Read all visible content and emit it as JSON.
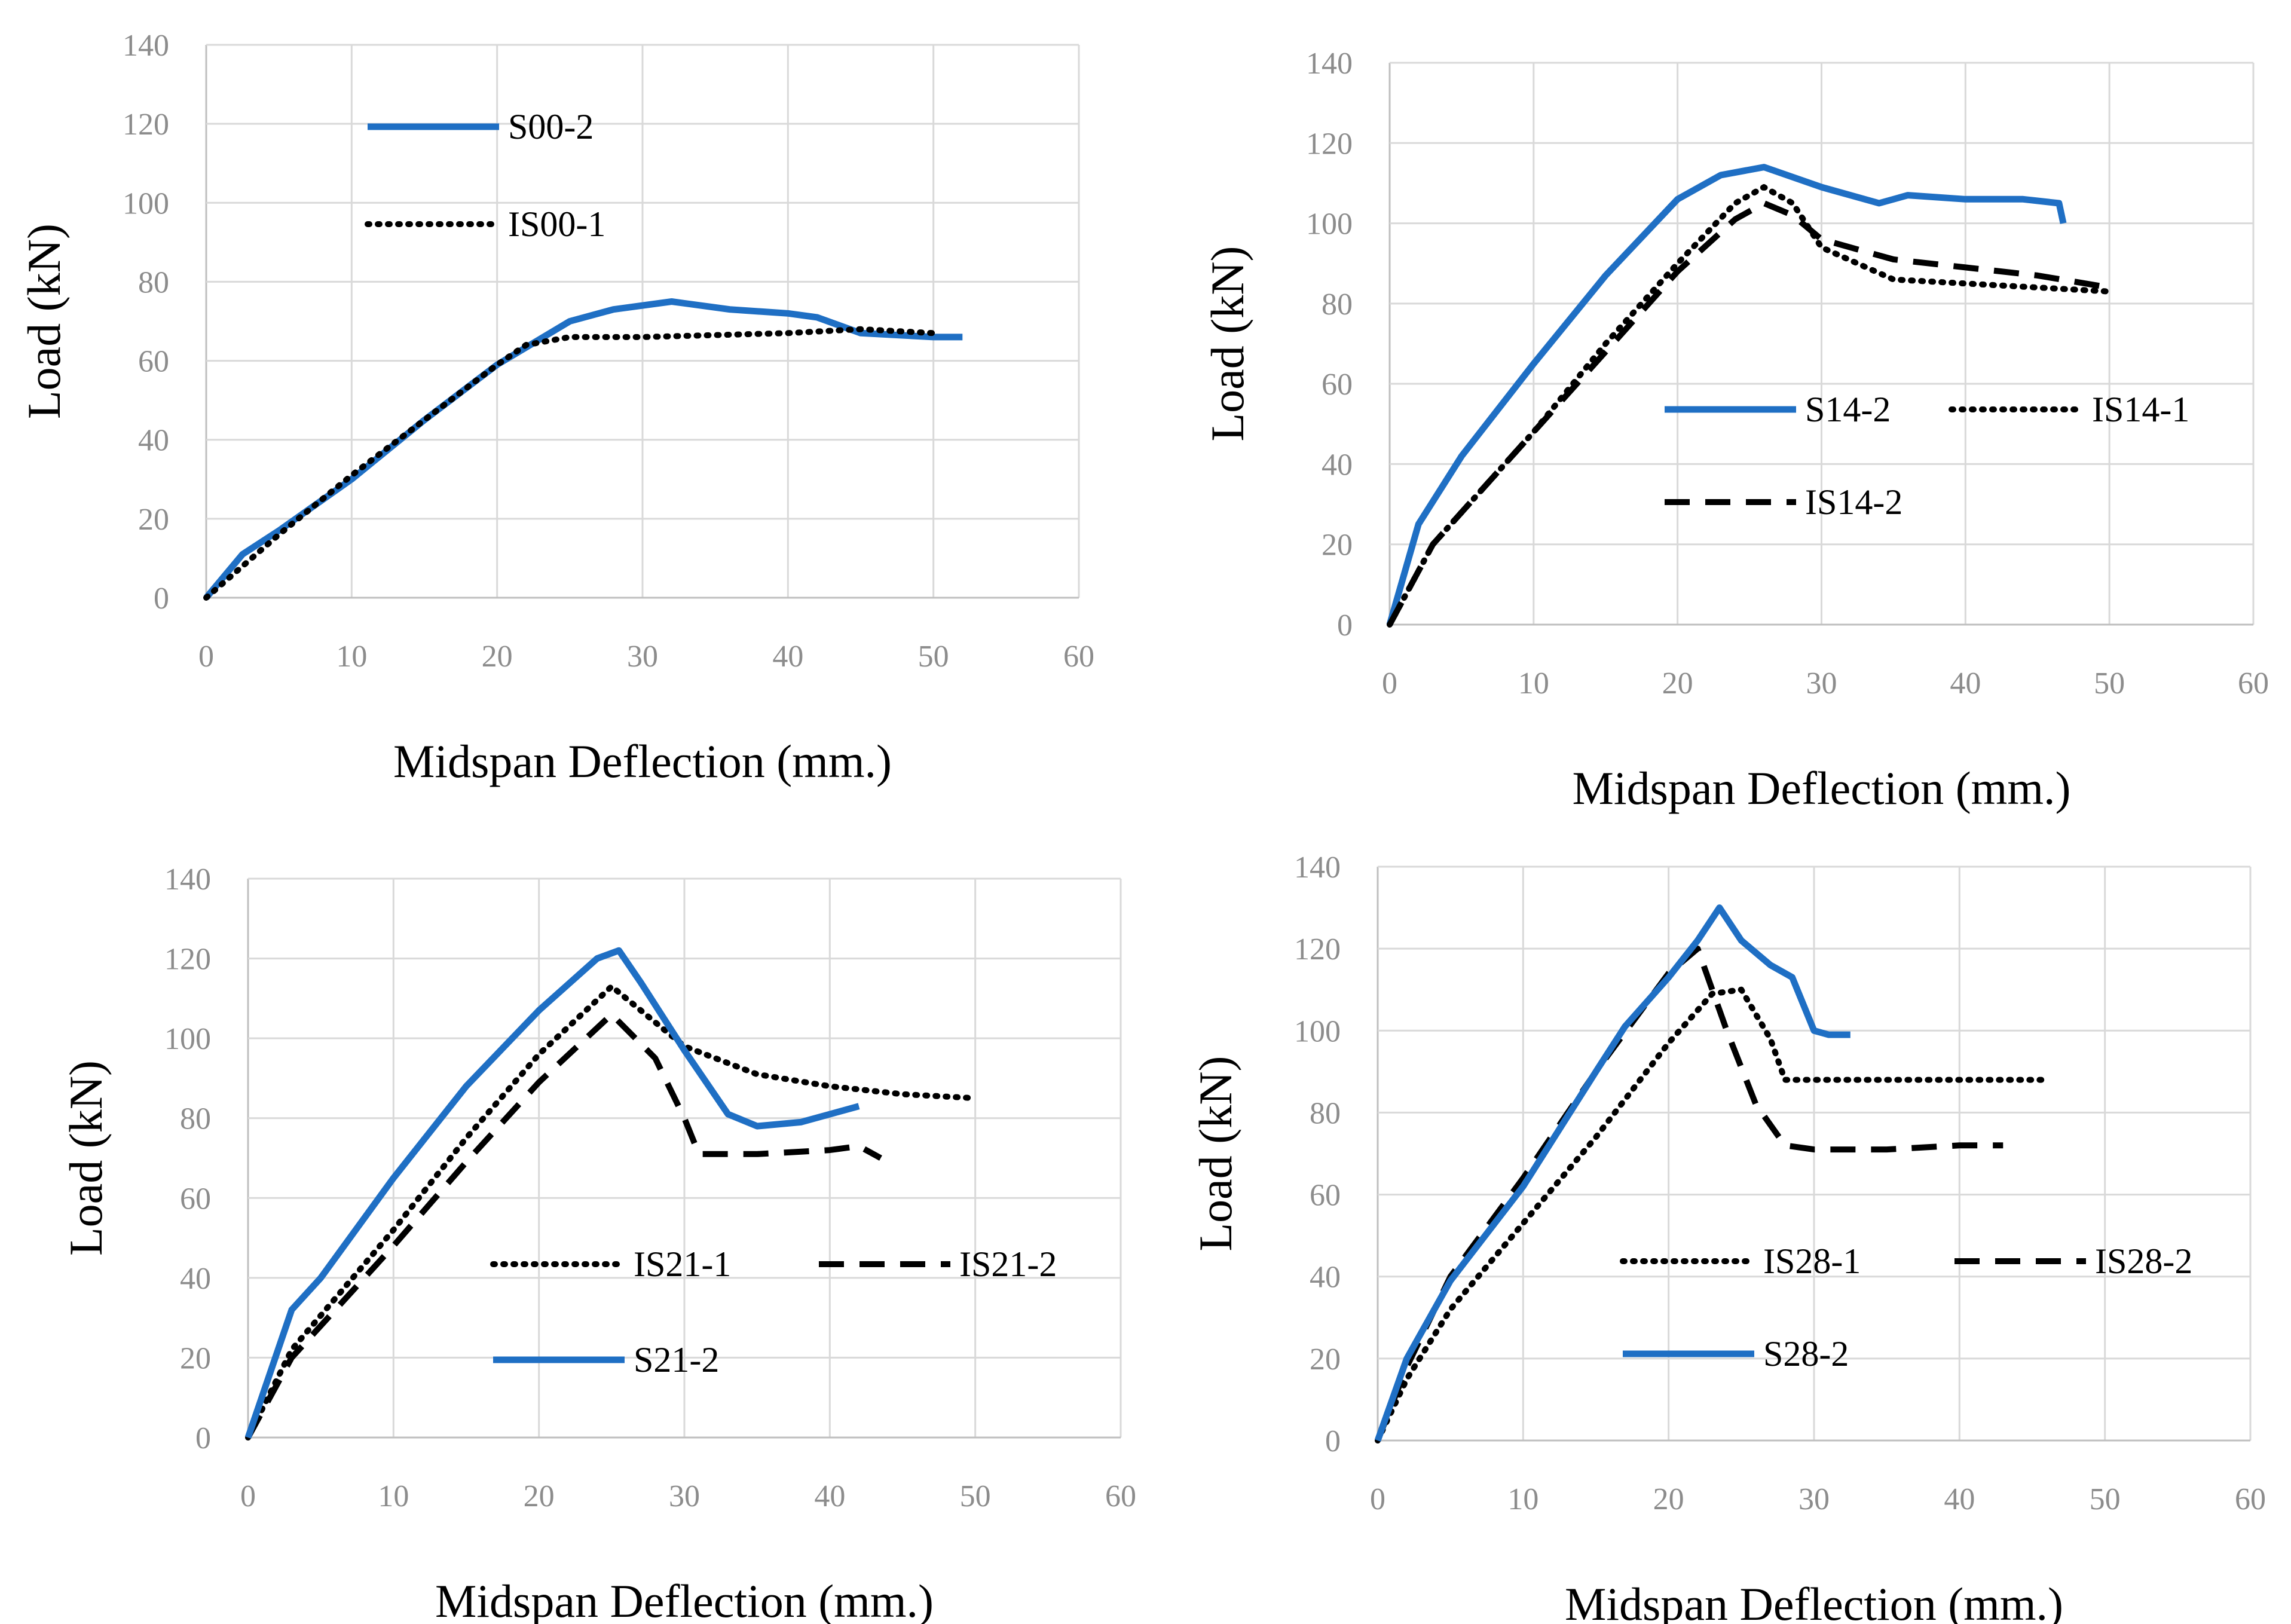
{
  "chart_data": [
    {
      "type": "line",
      "title": "",
      "xlabel": "Midspan Deflection (mm.)",
      "ylabel": "Load  (kN)",
      "xlim": [
        0,
        60
      ],
      "ylim": [
        0,
        140
      ],
      "x_ticks": [
        "0",
        "10",
        "20",
        "30",
        "40",
        "50",
        "60"
      ],
      "y_ticks": [
        "0",
        "20",
        "40",
        "60",
        "80",
        "100",
        "120",
        "140"
      ],
      "grid": true,
      "legend_position": "upper-left",
      "series": [
        {
          "name": "S00-2",
          "style": "solid",
          "color": "#1f6fc4",
          "x": [
            0,
            2.5,
            5,
            10,
            15,
            20,
            25,
            28,
            32,
            36,
            40,
            42,
            45,
            50,
            52
          ],
          "y": [
            0,
            11,
            17,
            30,
            45,
            59,
            70,
            73,
            75,
            73,
            72,
            71,
            67,
            66,
            66
          ]
        },
        {
          "name": "IS00-1",
          "style": "dotted",
          "color": "#000000",
          "x": [
            0,
            5,
            10,
            15,
            20,
            22,
            25,
            30,
            40,
            45,
            50
          ],
          "y": [
            0,
            16,
            31,
            45,
            59,
            64,
            66,
            66,
            67,
            68,
            67
          ]
        }
      ]
    },
    {
      "type": "line",
      "title": "",
      "xlabel": "Midspan Deflection (mm.)",
      "ylabel": "Load (kN)",
      "xlim": [
        0,
        60
      ],
      "ylim": [
        0,
        140
      ],
      "x_ticks": [
        "0",
        "10",
        "20",
        "30",
        "40",
        "50",
        "60"
      ],
      "y_ticks": [
        "0",
        "20",
        "40",
        "60",
        "80",
        "100",
        "120",
        "140"
      ],
      "grid": true,
      "legend_position": "lower-right",
      "series": [
        {
          "name": "S14-2",
          "style": "solid",
          "color": "#1f6fc4",
          "x": [
            0,
            2,
            5,
            10,
            15,
            20,
            23,
            26,
            30,
            34,
            36,
            40,
            44,
            46.5,
            46.8
          ],
          "y": [
            0,
            25,
            42,
            65,
            87,
            106,
            112,
            114,
            109,
            105,
            107,
            106,
            106,
            105,
            100
          ]
        },
        {
          "name": "IS14-1",
          "style": "dotted",
          "color": "#000000",
          "x": [
            0,
            3,
            10,
            15,
            20,
            24,
            26,
            28,
            30,
            35,
            40,
            45,
            50
          ],
          "y": [
            0,
            20,
            48,
            70,
            90,
            105,
            109,
            105,
            94,
            86,
            85,
            84,
            83
          ]
        },
        {
          "name": "IS14-2",
          "style": "dashed",
          "color": "#000000",
          "x": [
            0,
            3,
            10,
            15,
            20,
            24,
            26,
            28,
            30,
            35,
            40,
            45,
            50
          ],
          "y": [
            0,
            20,
            48,
            68,
            88,
            101,
            105,
            102,
            96,
            91,
            89,
            87,
            84
          ]
        }
      ]
    },
    {
      "type": "line",
      "title": "",
      "xlabel": "Midspan Deflection (mm.)",
      "ylabel": "Load (kN)",
      "xlim": [
        0,
        60
      ],
      "ylim": [
        0,
        140
      ],
      "x_ticks": [
        "0",
        "10",
        "20",
        "30",
        "40",
        "50",
        "60"
      ],
      "y_ticks": [
        "0",
        "20",
        "40",
        "60",
        "80",
        "100",
        "120",
        "140"
      ],
      "grid": true,
      "legend_position": "lower-right",
      "series": [
        {
          "name": "IS21-1",
          "style": "dotted",
          "color": "#000000",
          "x": [
            0,
            3,
            10,
            15,
            20,
            25,
            28,
            30,
            35,
            40,
            45,
            50
          ],
          "y": [
            0,
            22,
            52,
            75,
            96,
            113,
            104,
            98,
            91,
            88,
            86,
            85
          ]
        },
        {
          "name": "IS21-2",
          "style": "dashed",
          "color": "#000000",
          "x": [
            0,
            3,
            10,
            15,
            20,
            25,
            28,
            30,
            31,
            35,
            40,
            42,
            43.5
          ],
          "y": [
            0,
            20,
            48,
            69,
            89,
            106,
            95,
            80,
            71,
            71,
            72,
            73,
            70
          ]
        },
        {
          "name": "S21-2",
          "style": "solid",
          "color": "#1f6fc4",
          "x": [
            0,
            3,
            5,
            10,
            15,
            20,
            24,
            25.5,
            27,
            30,
            33,
            35,
            38,
            42
          ],
          "y": [
            0,
            32,
            40,
            65,
            88,
            107,
            120,
            122,
            114,
            97,
            81,
            78,
            79,
            83
          ]
        }
      ]
    },
    {
      "type": "line",
      "title": "",
      "xlabel": "Midspan Deflection (mm.)",
      "ylabel": "Load (kN)",
      "xlim": [
        0,
        60
      ],
      "ylim": [
        0,
        140
      ],
      "x_ticks": [
        "0",
        "10",
        "20",
        "30",
        "40",
        "50",
        "60"
      ],
      "y_ticks": [
        "0",
        "20",
        "40",
        "60",
        "80",
        "100",
        "120",
        "140"
      ],
      "grid": true,
      "legend_position": "lower-right",
      "series": [
        {
          "name": "IS28-1",
          "style": "dotted",
          "color": "#000000",
          "x": [
            0,
            2,
            5,
            10,
            15,
            20,
            23,
            25,
            27,
            28,
            30,
            35,
            40,
            46
          ],
          "y": [
            0,
            15,
            32,
            53,
            74,
            97,
            109,
            110,
            98,
            88,
            88,
            88,
            88,
            88
          ]
        },
        {
          "name": "IS28-2",
          "style": "dashed",
          "color": "#000000",
          "x": [
            0,
            2,
            5,
            10,
            15,
            20,
            22,
            24,
            26,
            28,
            30,
            35,
            40,
            43
          ],
          "y": [
            0,
            18,
            40,
            64,
            90,
            114,
            120,
            100,
            82,
            72,
            71,
            71,
            72,
            72
          ]
        },
        {
          "name": "S28-2",
          "style": "solid",
          "color": "#1f6fc4",
          "x": [
            0,
            2,
            5,
            10,
            15,
            17,
            20,
            22,
            23.5,
            25,
            27,
            28.5,
            30,
            31,
            32.5
          ],
          "y": [
            0,
            20,
            39,
            62,
            90,
            101,
            113,
            122,
            130,
            122,
            116,
            113,
            100,
            99,
            99
          ]
        }
      ]
    }
  ]
}
